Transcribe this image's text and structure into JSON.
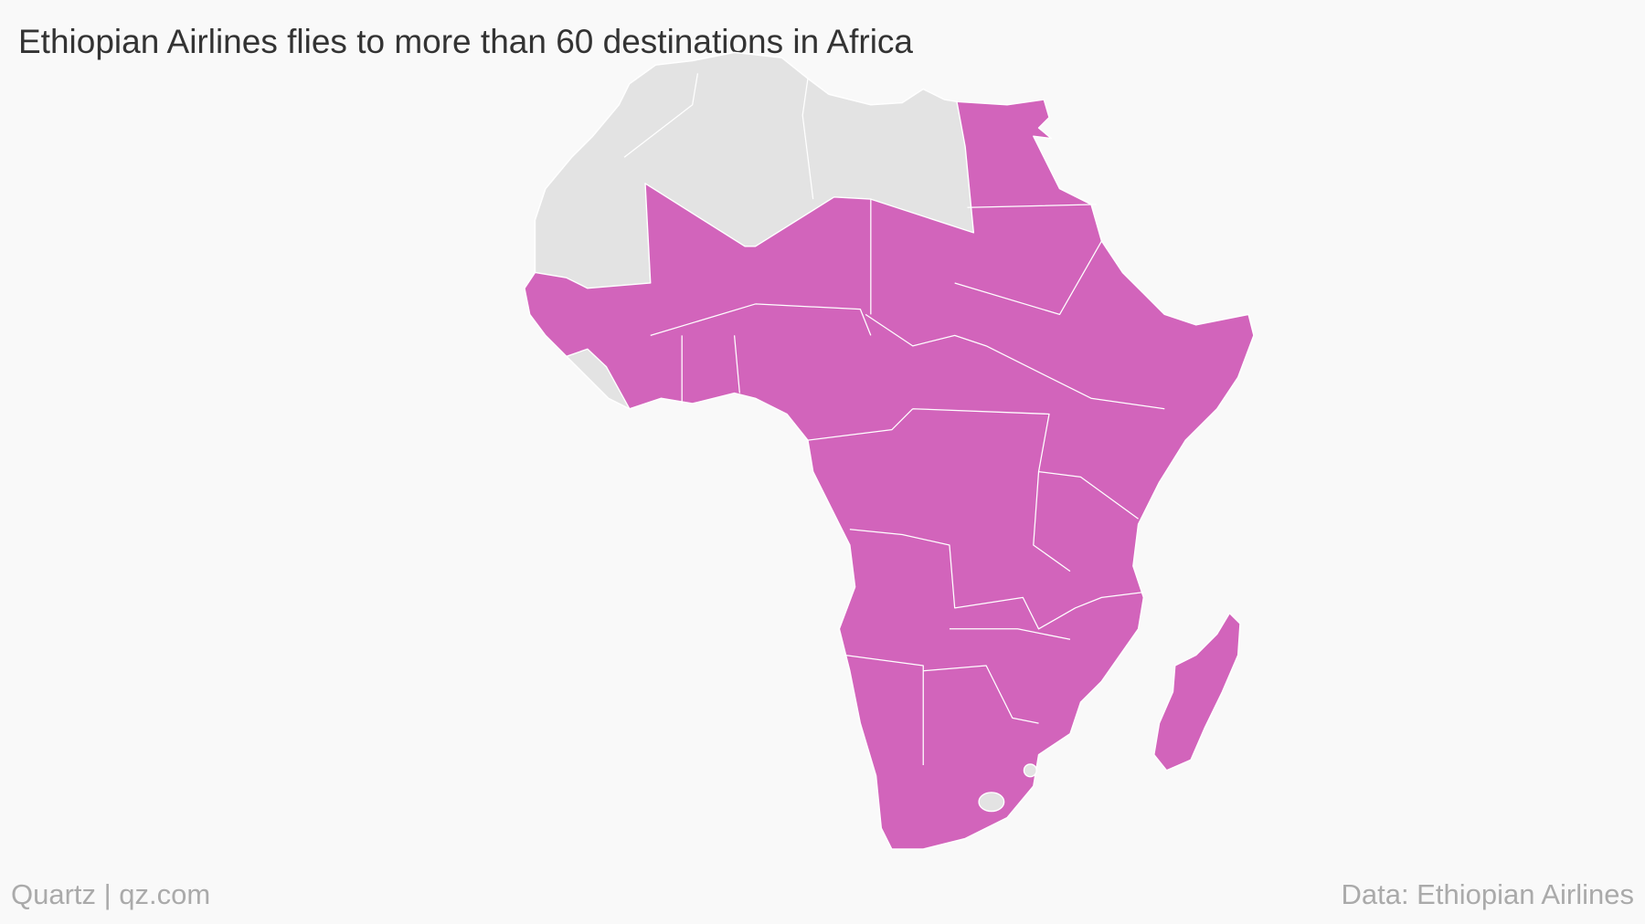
{
  "title": "Ethiopian Airlines flies to more than 60 destinations in Africa",
  "credit": "Quartz | qz.com",
  "source": "Data: Ethiopian Airlines"
}
